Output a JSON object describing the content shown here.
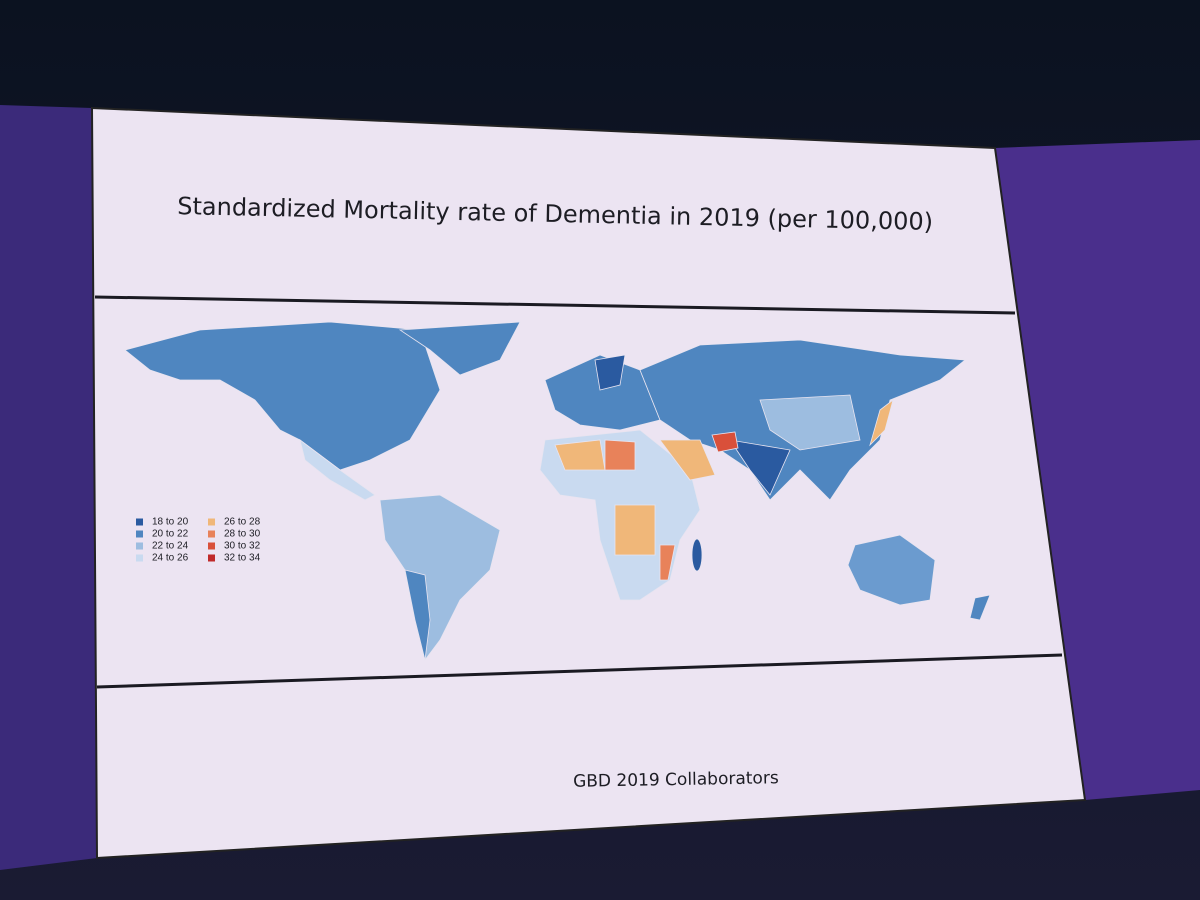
{
  "slide": {
    "title": "Standardized Mortality rate of Dementia in 2019 (per 100,000)",
    "legend": [
      {
        "label": "18  to  20",
        "color": "#2a5aa0"
      },
      {
        "label": "20  to  22",
        "color": "#4f86c0"
      },
      {
        "label": "22  to  24",
        "color": "#9dbde0"
      },
      {
        "label": "24  to  26",
        "color": "#c9daf0"
      },
      {
        "label": "26  to  28",
        "color": "#f0b779"
      },
      {
        "label": "28  to  30",
        "color": "#e8825a"
      },
      {
        "label": "30  to  32",
        "color": "#d9503a"
      },
      {
        "label": "32  to  34",
        "color": "#c02a2a"
      }
    ],
    "footer": "GBD 2019 Collaborators"
  }
}
